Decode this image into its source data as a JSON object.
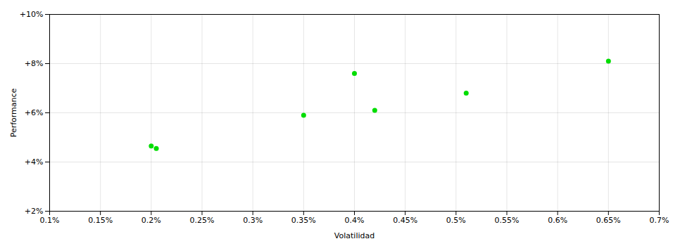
{
  "chart_data": {
    "type": "scatter",
    "xlabel": "Volatilidad",
    "ylabel": "Performance",
    "x": [
      0.002,
      0.00205,
      0.0035,
      0.004,
      0.0042,
      0.0051,
      0.0065
    ],
    "values": [
      0.0465,
      0.0455,
      0.059,
      0.076,
      0.061,
      0.068,
      0.081
    ],
    "color": "#00dd00",
    "xlim": [
      0.001,
      0.007
    ],
    "ylim": [
      0.02,
      0.1
    ],
    "xticks": [
      {
        "value": 0.001,
        "label": "0.1%"
      },
      {
        "value": 0.0015,
        "label": "0.15%"
      },
      {
        "value": 0.002,
        "label": "0.2%"
      },
      {
        "value": 0.0025,
        "label": "0.25%"
      },
      {
        "value": 0.003,
        "label": "0.3%"
      },
      {
        "value": 0.0035,
        "label": "0.35%"
      },
      {
        "value": 0.004,
        "label": "0.4%"
      },
      {
        "value": 0.0045,
        "label": "0.45%"
      },
      {
        "value": 0.005,
        "label": "0.5%"
      },
      {
        "value": 0.0055,
        "label": "0.55%"
      },
      {
        "value": 0.006,
        "label": "0.6%"
      },
      {
        "value": 0.0065,
        "label": "0.65%"
      },
      {
        "value": 0.007,
        "label": "0.7%"
      }
    ],
    "yticks": [
      {
        "value": 0.02,
        "label": "+2%"
      },
      {
        "value": 0.04,
        "label": "+4%"
      },
      {
        "value": 0.06,
        "label": "+6%"
      },
      {
        "value": 0.08,
        "label": "+8%"
      },
      {
        "value": 0.1,
        "label": "+10%"
      }
    ],
    "grid": true
  }
}
